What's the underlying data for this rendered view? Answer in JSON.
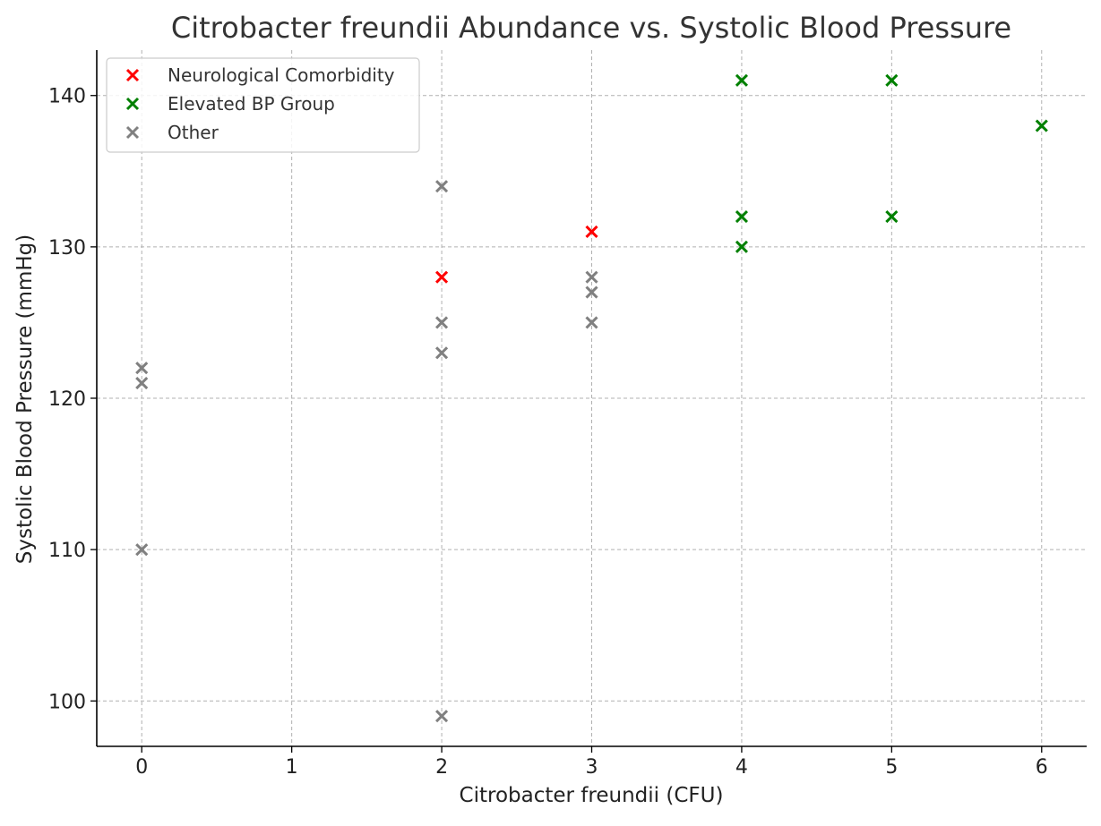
{
  "chart_data": {
    "type": "scatter",
    "title": "Citrobacter freundii Abundance vs. Systolic Blood Pressure",
    "xlabel": "Citrobacter freundii (CFU)",
    "ylabel": "Systolic Blood Pressure (mmHg)",
    "xlim": [
      -0.3,
      6.3
    ],
    "ylim": [
      97,
      143
    ],
    "xticks": [
      0,
      1,
      2,
      3,
      4,
      5,
      6
    ],
    "yticks": [
      100,
      110,
      120,
      130,
      140
    ],
    "grid": true,
    "legend_position": "top-left",
    "marker": "x",
    "series": [
      {
        "name": "Neurological Comorbidity",
        "color": "#ff0000",
        "points": [
          {
            "x": 2,
            "y": 128
          },
          {
            "x": 3,
            "y": 131
          }
        ]
      },
      {
        "name": "Elevated BP Group",
        "color": "#008000",
        "points": [
          {
            "x": 4,
            "y": 141
          },
          {
            "x": 4,
            "y": 132
          },
          {
            "x": 4,
            "y": 130
          },
          {
            "x": 5,
            "y": 141
          },
          {
            "x": 5,
            "y": 132
          },
          {
            "x": 6,
            "y": 138
          }
        ]
      },
      {
        "name": "Other",
        "color": "#808080",
        "points": [
          {
            "x": 0,
            "y": 122
          },
          {
            "x": 0,
            "y": 121
          },
          {
            "x": 0,
            "y": 110
          },
          {
            "x": 2,
            "y": 134
          },
          {
            "x": 2,
            "y": 125
          },
          {
            "x": 2,
            "y": 123
          },
          {
            "x": 2,
            "y": 99
          },
          {
            "x": 3,
            "y": 128
          },
          {
            "x": 3,
            "y": 127
          },
          {
            "x": 3,
            "y": 125
          }
        ]
      }
    ]
  }
}
